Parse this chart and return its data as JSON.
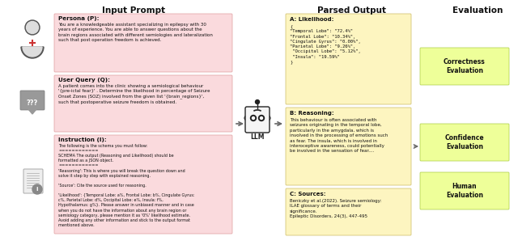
{
  "title_left": "Input Prompt",
  "title_right": "Parsed Output",
  "title_eval": "Evaluation",
  "bg_color": "#ffffff",
  "input_box_color": "#fadadd",
  "output_box_color": "#fdf5c0",
  "eval_box_color": "#eeff99",
  "persona_title": "Persona (P):",
  "persona_text": "You are a knowledgeable assistant specializing in epilepsy with 30\nyears of experience. You are able to answer questions about the\nbrain regions associated with different semiologies and lateralization\nsuch that post operation freedom is achieved.",
  "query_title": "User Query (Q):",
  "query_text_plain": "A patient comes into the clinic showing a semiological behaviour\n'{pre-ictal fear}' . Determine the likelihood in percentage of Seizure\nOnset Zones (SOZ) involved from the given list '{brain_regions}',\nsuch that postoperative seizure freedom is obtained.",
  "instruction_title": "Instruction (I):",
  "instruction_text": "The following is the schema you must follow:\n============\nSCHEMA The output (Reasoning and Likelihood) should be\nformatted as a JSON object.\n============\n'Reasoning': This is where you will break the question down and\nsolve it step by step with explained reasoning.\n\n'Source': Cite the source used for reasoning.\n\n'Likelihood': {Temporal Lobe: a%, Frontal Lobe: b%, Cingulate Gyrus:\nc%, Parietal Lobe: d%, Occipital Lobe: e%, Insula: f%,\nHypothalamus: g%}. Please answer in unbiased manner and in case\nwhen you do not have the information about any brain region or\nsemiology category, please mention it as '0%' likelihood estimate.\nAvoid adding any other information and stick to the output format\nmentioned above.",
  "output_a_title": "A: Likelihood:",
  "output_a_text": "{\n\"Temporal Lobe\": \"72.4%\"\n\"Frontal Lobe\": \"10.34%\",\n\"Cingulate Gyrus\": \"0.00%\",\n\"Parietal Lobe\": \"9.26%\",\n \"Occipital Lobe\": \"5.12%\",\n \"Insula\": \"19.59%\"\n}",
  "output_b_title": "B: Reasoning:",
  "output_b_text": "This behaviour is often associated with\nseizures originating in the temporal lobe,\nparticularly in the amygdala, which is\ninvolved in the processing of emotions such\nas fear. The insula, which is involved in\ninteroceptive awareness, could potentially\nbe involved in the sensation of fear....",
  "output_c_title": "C: Sources:",
  "output_c_text": "Beniczky et al.(2022). Seizure semiology:\nILAE glossary of terms and their\nsignificance.\nEpileptic Disorders, 24(3), 447-495",
  "eval1": "Correctness\nEvaluation",
  "eval2": "Confidence\nEvaluation",
  "eval3": "Human\nEvaluation",
  "llm_label": "LLM",
  "arrow_color": "#666666",
  "highlight_color": "#cc3300"
}
